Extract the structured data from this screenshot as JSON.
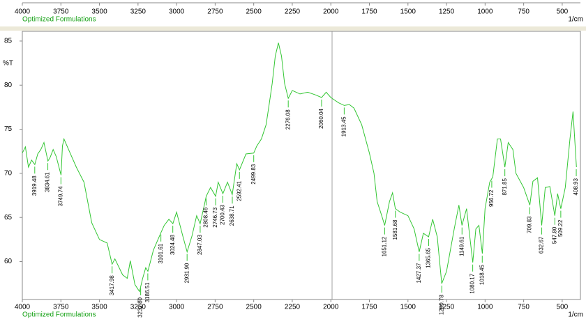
{
  "chart_data": {
    "type": "line",
    "y_label": "%T",
    "x_label": "1/cm",
    "xlim": [
      4000,
      382
    ],
    "ylim": [
      55.7,
      86.1
    ],
    "xticks": [
      4000,
      3750,
      3500,
      3250,
      3000,
      2750,
      2500,
      2250,
      2000,
      1750,
      1500,
      1250,
      1000,
      750,
      500
    ],
    "yticks": [
      60,
      65,
      70,
      75,
      80,
      85
    ],
    "series": [
      {
        "name": "Optimized Formulations",
        "color": "#33c633",
        "x": [
          4000,
          3980,
          3960,
          3940,
          3919,
          3900,
          3880,
          3860,
          3834,
          3820,
          3800,
          3780,
          3749,
          3740,
          3730,
          3700,
          3650,
          3600,
          3550,
          3500,
          3450,
          3418,
          3400,
          3350,
          3320,
          3300,
          3270,
          3240,
          3220,
          3200,
          3186,
          3150,
          3101,
          3080,
          3050,
          3024,
          3000,
          2960,
          2932,
          2900,
          2870,
          2847,
          2820,
          2808,
          2780,
          2747,
          2730,
          2700,
          2670,
          2639,
          2610,
          2592,
          2550,
          2500,
          2480,
          2450,
          2420,
          2400,
          2380,
          2360,
          2340,
          2320,
          2300,
          2276,
          2250,
          2200,
          2150,
          2100,
          2060,
          2030,
          2000,
          1950,
          1913,
          1880,
          1850,
          1800,
          1750,
          1720,
          1700,
          1670,
          1651,
          1620,
          1600,
          1582,
          1550,
          1500,
          1460,
          1427,
          1400,
          1366,
          1340,
          1310,
          1281,
          1250,
          1200,
          1170,
          1150,
          1120,
          1080,
          1060,
          1040,
          1018,
          1000,
          970,
          950,
          920,
          900,
          872,
          850,
          820,
          800,
          750,
          710,
          690,
          660,
          633,
          610,
          580,
          548,
          530,
          509,
          480,
          450,
          430,
          408
        ],
        "values": [
          72.3,
          73,
          70.7,
          71.5,
          71,
          72.2,
          72.7,
          73.5,
          71.4,
          71.8,
          72.7,
          71.9,
          69.8,
          73.1,
          73.9,
          72.7,
          70.7,
          69,
          64.4,
          62.5,
          62.1,
          59.7,
          60.3,
          58.5,
          58.1,
          60.1,
          57.4,
          56.6,
          58.1,
          59.3,
          58.9,
          61.3,
          63.3,
          64.1,
          64.8,
          64.3,
          65.6,
          62.9,
          61.1,
          62.9,
          65.2,
          64.3,
          66.4,
          67.4,
          68.4,
          67.4,
          69,
          67.7,
          69,
          67.6,
          71.1,
          70.4,
          72.2,
          72.3,
          73.1,
          73.9,
          75.5,
          77.8,
          80.2,
          83.3,
          84.8,
          83.3,
          80.2,
          78.5,
          79.4,
          79,
          79.2,
          78.9,
          78.6,
          79.2,
          78.6,
          78,
          77.7,
          77.8,
          77.4,
          75.5,
          72.3,
          70,
          66.8,
          65.2,
          64.1,
          66.8,
          67.8,
          66,
          65.6,
          65.2,
          63.7,
          61.1,
          63.2,
          62.8,
          64.8,
          62.8,
          57.5,
          58.9,
          63.7,
          66.4,
          64.1,
          66,
          59.9,
          63.7,
          64.1,
          60.9,
          66,
          69,
          69.6,
          73.9,
          73.9,
          70.7,
          73.5,
          72.7,
          70,
          68.4,
          66.4,
          69.1,
          69.5,
          64.1,
          68.4,
          68.5,
          65.2,
          67.7,
          66,
          68.4,
          73.9,
          77,
          70.7
        ]
      }
    ],
    "peaks": [
      {
        "x": 3919.48,
        "y": 71,
        "label": "3919.48"
      },
      {
        "x": 3834.61,
        "y": 71.4,
        "label": "3834.61"
      },
      {
        "x": 3749.74,
        "y": 69.8,
        "label": "3749.74"
      },
      {
        "x": 3417.98,
        "y": 59.7,
        "label": "3417.98"
      },
      {
        "x": 3232.8,
        "y": 57.2,
        "label": "3232.80"
      },
      {
        "x": 3186.51,
        "y": 58.9,
        "label": "3186.51"
      },
      {
        "x": 3101.61,
        "y": 63.3,
        "label": "3101.61"
      },
      {
        "x": 3024.48,
        "y": 64.3,
        "label": "3024.48"
      },
      {
        "x": 2931.9,
        "y": 61.1,
        "label": "2931.90"
      },
      {
        "x": 2847.03,
        "y": 64.3,
        "label": "2847.03"
      },
      {
        "x": 2808.46,
        "y": 67.4,
        "label": "2808.46"
      },
      {
        "x": 2746.73,
        "y": 67.4,
        "label": "2746.73"
      },
      {
        "x": 2700.43,
        "y": 67.7,
        "label": "2700.43"
      },
      {
        "x": 2638.71,
        "y": 67.6,
        "label": "2638.71"
      },
      {
        "x": 2592.41,
        "y": 70.4,
        "label": "2592.41"
      },
      {
        "x": 2499.83,
        "y": 72.3,
        "label": "2499.83"
      },
      {
        "x": 2276.08,
        "y": 78.5,
        "label": "2276.08"
      },
      {
        "x": 2060.04,
        "y": 78.6,
        "label": "2060.04"
      },
      {
        "x": 1913.45,
        "y": 77.7,
        "label": "1913.45"
      },
      {
        "x": 1651.12,
        "y": 64.1,
        "label": "1651.12"
      },
      {
        "x": 1581.68,
        "y": 66,
        "label": "1581.68"
      },
      {
        "x": 1427.37,
        "y": 61.1,
        "label": "1427.37"
      },
      {
        "x": 1365.65,
        "y": 62.8,
        "label": "1365.65"
      },
      {
        "x": 1280.78,
        "y": 57.5,
        "label": "1280.78"
      },
      {
        "x": 1149.61,
        "y": 64.1,
        "label": "1149.61"
      },
      {
        "x": 1080.17,
        "y": 59.9,
        "label": "1080.17"
      },
      {
        "x": 1018.45,
        "y": 60.9,
        "label": "1018.45"
      },
      {
        "x": 956.72,
        "y": 69.4,
        "label": "956.72"
      },
      {
        "x": 871.85,
        "y": 70.7,
        "label": "871.85"
      },
      {
        "x": 709.83,
        "y": 66.4,
        "label": "709.83"
      },
      {
        "x": 632.67,
        "y": 64.1,
        "label": "632.67"
      },
      {
        "x": 547.8,
        "y": 65.2,
        "label": "547.80"
      },
      {
        "x": 509.22,
        "y": 66,
        "label": "509.22"
      },
      {
        "x": 408.93,
        "y": 70.7,
        "label": "408.93"
      }
    ]
  }
}
